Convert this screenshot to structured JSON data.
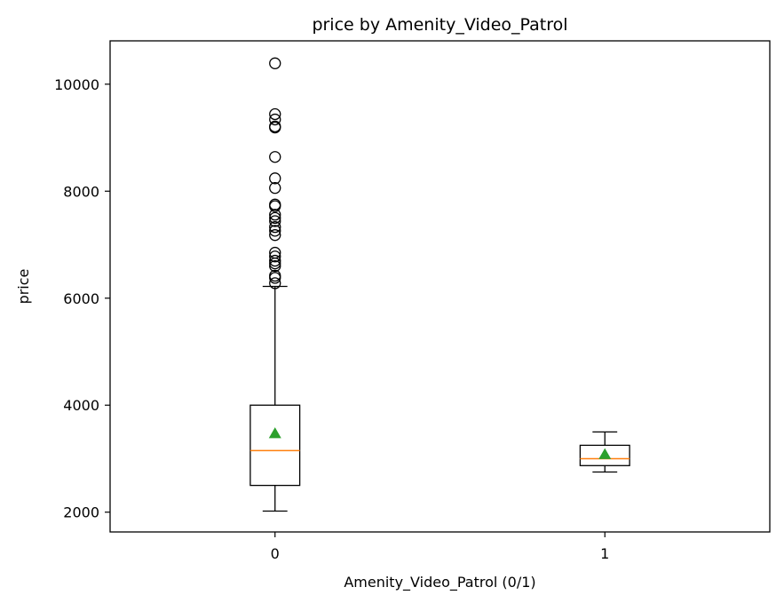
{
  "chart_data": {
    "type": "boxplot",
    "title": "price by Amenity_Video_Patrol",
    "xlabel": "Amenity_Video_Patrol (0/1)",
    "ylabel": "price",
    "ylim": [
      1630,
      10810
    ],
    "yticks": [
      2000,
      4000,
      6000,
      8000,
      10000
    ],
    "categories": [
      "0",
      "1"
    ],
    "boxes": [
      {
        "category": "0",
        "whisker_low": 2020,
        "q1": 2500,
        "median": 3150,
        "q3": 4000,
        "whisker_high": 6220,
        "mean": 3470,
        "outliers": [
          6280,
          6380,
          6420,
          6600,
          6650,
          6700,
          6780,
          6850,
          7180,
          7260,
          7330,
          7440,
          7500,
          7560,
          7720,
          7750,
          8060,
          8240,
          8640,
          9190,
          9210,
          9340,
          9440,
          10390
        ]
      },
      {
        "category": "1",
        "whisker_low": 2750,
        "q1": 2870,
        "median": 3000,
        "q3": 3250,
        "whisker_high": 3500,
        "mean": 3080,
        "outliers": []
      }
    ],
    "colors": {
      "box": "#000000",
      "median": "#ff7f0e",
      "mean": "#2ca02c"
    },
    "grid": false
  }
}
